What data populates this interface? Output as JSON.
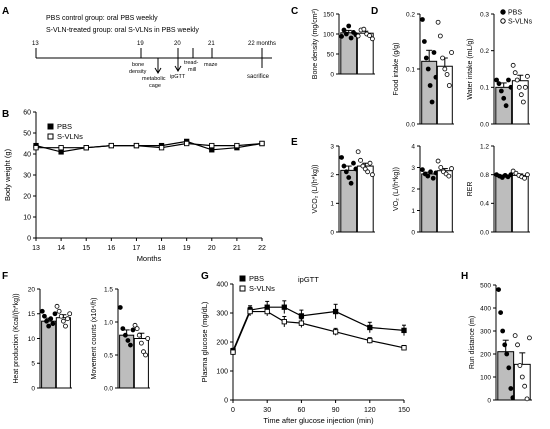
{
  "panel_letters": {
    "a": "A",
    "b": "B",
    "c": "C",
    "d": "D",
    "e": "E",
    "f": "F",
    "g": "G",
    "h": "H"
  },
  "timeline": {
    "line1": "PBS control group: oral PBS weekly",
    "line2": "S-VLN-treated group: oral S-VLNs in PBS weekly",
    "start_month": "13",
    "end_month": "22 months",
    "sacrifice": "sacrifice",
    "events": [
      {
        "month": "19",
        "label1": "bone",
        "label2": "density",
        "label3": "",
        "side": "up"
      },
      {
        "month": "",
        "label1": "metabolic",
        "label2": "cage",
        "label3": "",
        "side": "down"
      },
      {
        "month": "20",
        "label1": "ipGTT",
        "label2": "",
        "label3": "",
        "side": "down"
      },
      {
        "month": "",
        "label1": "tread-",
        "label2": "mill",
        "label3": "",
        "side": "up"
      },
      {
        "month": "21",
        "label1": "maze",
        "label2": "",
        "label3": "",
        "side": "up"
      }
    ]
  },
  "chart_data": [
    {
      "id": "B",
      "type": "line",
      "xlabel": "Months",
      "ylabel": "Body weight (g)",
      "x": [
        13,
        14,
        15,
        16,
        17,
        18,
        19,
        20,
        21,
        22
      ],
      "xlim": [
        13,
        22
      ],
      "ylim": [
        0,
        60
      ],
      "yticks": [
        0,
        10,
        20,
        30,
        40,
        50,
        60
      ],
      "series": [
        {
          "name": "PBS",
          "marker": "square-filled",
          "values": [
            44,
            41,
            43,
            44,
            44,
            44,
            46,
            42,
            43,
            45
          ]
        },
        {
          "name": "S-VLNs",
          "marker": "square-open",
          "values": [
            43,
            43,
            43,
            44,
            44,
            43,
            45,
            44,
            44,
            45
          ]
        }
      ],
      "legend_position": "top-left"
    },
    {
      "id": "C",
      "type": "bar",
      "ylabel": "Bone density (mg/cm²)",
      "ylim": [
        0,
        150
      ],
      "yticks": [
        0,
        50,
        100,
        150
      ],
      "series": [
        {
          "name": "PBS",
          "mean": 103,
          "sem": 6,
          "points": [
            94,
            110,
            100,
            120,
            90,
            104,
            98
          ]
        },
        {
          "name": "S-VLNs",
          "mean": 102,
          "sem": 5,
          "points": [
            95,
            110,
            112,
            100,
            96,
            88
          ]
        }
      ]
    },
    {
      "id": "D-food",
      "type": "bar",
      "ylabel": "Food intake (g/g)",
      "ylim": [
        0,
        0.2
      ],
      "yticks": [
        0.0,
        0.1,
        0.2
      ],
      "series": [
        {
          "name": "PBS",
          "mean": 0.114,
          "sem": 0.02,
          "points": [
            0.19,
            0.15,
            0.12,
            0.1,
            0.07,
            0.04,
            0.13,
            0.085
          ]
        },
        {
          "name": "S-VLNs",
          "mean": 0.105,
          "sem": 0.015,
          "points": [
            0.185,
            0.16,
            0.12,
            0.1,
            0.09,
            0.07,
            0.13
          ]
        }
      ]
    },
    {
      "id": "D-water",
      "type": "bar",
      "ylabel": "Water intake (mL/g)",
      "ylim": [
        0,
        0.3
      ],
      "yticks": [
        0.0,
        0.1,
        0.2,
        0.3
      ],
      "series": [
        {
          "name": "PBS",
          "mean": 0.1,
          "sem": 0.012,
          "points": [
            0.12,
            0.11,
            0.09,
            0.07,
            0.05,
            0.12,
            0.1
          ]
        },
        {
          "name": "S-VLNs",
          "mean": 0.118,
          "sem": 0.015,
          "points": [
            0.16,
            0.14,
            0.12,
            0.1,
            0.08,
            0.06,
            0.1,
            0.13
          ]
        }
      ],
      "legend_position": "top-right"
    },
    {
      "id": "E-vco2",
      "type": "bar",
      "ylabel": "VCO₂ (L/(h*kg))",
      "ylim": [
        0,
        3
      ],
      "yticks": [
        0,
        1,
        2,
        3
      ],
      "series": [
        {
          "name": "PBS",
          "mean": 2.15,
          "sem": 0.15,
          "points": [
            2.6,
            2.3,
            2.1,
            1.9,
            1.7,
            2.4,
            2.2
          ]
        },
        {
          "name": "S-VLNs",
          "mean": 2.3,
          "sem": 0.1,
          "points": [
            2.8,
            2.5,
            2.3,
            2.2,
            2.1,
            2.4,
            2.0
          ]
        }
      ]
    },
    {
      "id": "E-vo2",
      "type": "bar",
      "ylabel": "VO₂ (L/(h*kg))",
      "ylim": [
        0,
        4
      ],
      "yticks": [
        0,
        1,
        2,
        3,
        4
      ],
      "series": [
        {
          "name": "PBS",
          "mean": 2.7,
          "sem": 0.08,
          "points": [
            2.9,
            2.7,
            2.6,
            2.8,
            2.5,
            2.75
          ]
        },
        {
          "name": "S-VLNs",
          "mean": 2.85,
          "sem": 0.1,
          "points": [
            3.3,
            3.0,
            2.8,
            2.7,
            2.6,
            2.95
          ]
        }
      ]
    },
    {
      "id": "E-rer",
      "type": "bar",
      "ylabel": "RER",
      "ylim": [
        0,
        1.2
      ],
      "yticks": [
        0.0,
        0.4,
        0.8,
        1.2
      ],
      "series": [
        {
          "name": "PBS",
          "mean": 0.78,
          "sem": 0.015,
          "points": [
            0.8,
            0.78,
            0.76,
            0.79,
            0.77,
            0.8
          ]
        },
        {
          "name": "S-VLNs",
          "mean": 0.79,
          "sem": 0.02,
          "points": [
            0.85,
            0.82,
            0.79,
            0.77,
            0.75,
            0.8
          ]
        }
      ]
    },
    {
      "id": "F-heat",
      "type": "bar",
      "ylabel": "Heat production (Kcal/(h*kg))",
      "ylim": [
        0,
        20
      ],
      "yticks": [
        0,
        5,
        10,
        15,
        20
      ],
      "series": [
        {
          "name": "PBS",
          "mean": 13.5,
          "sem": 0.6,
          "points": [
            15.5,
            14.5,
            13.5,
            12.5,
            14,
            13,
            15
          ]
        },
        {
          "name": "S-VLNs",
          "mean": 14.2,
          "sem": 0.6,
          "points": [
            16.5,
            15.5,
            14.5,
            13.5,
            12.5,
            14,
            15
          ]
        }
      ]
    },
    {
      "id": "F-move",
      "type": "bar",
      "ylabel": "Movement counts (x10⁴/h)",
      "ylim": [
        0,
        1.5
      ],
      "yticks": [
        0.0,
        0.5,
        1.0,
        1.5
      ],
      "series": [
        {
          "name": "PBS",
          "mean": 0.8,
          "sem": 0.08,
          "points": [
            1.22,
            0.9,
            0.8,
            0.72,
            0.65,
            0.88
          ]
        },
        {
          "name": "S-VLNs",
          "mean": 0.75,
          "sem": 0.08,
          "points": [
            0.95,
            0.9,
            0.8,
            0.68,
            0.55,
            0.5,
            0.75
          ]
        }
      ]
    },
    {
      "id": "G",
      "type": "line",
      "title": "ipGTT",
      "xlabel": "Time after glucose injection (min)",
      "ylabel": "Plasma glucose (mg/dL)",
      "x": [
        0,
        15,
        30,
        45,
        60,
        90,
        120,
        150
      ],
      "xticks": [
        0,
        30,
        60,
        90,
        120,
        150
      ],
      "ylim": [
        0,
        400
      ],
      "yticks": [
        0,
        100,
        200,
        300,
        400
      ],
      "series": [
        {
          "name": "PBS",
          "marker": "square-filled",
          "values": [
            170,
            310,
            320,
            320,
            290,
            305,
            250,
            240
          ],
          "sem": [
            8,
            15,
            20,
            22,
            20,
            25,
            18,
            18
          ]
        },
        {
          "name": "S-VLNs",
          "marker": "square-open",
          "values": [
            165,
            305,
            305,
            270,
            265,
            235,
            205,
            180
          ],
          "sem": [
            8,
            15,
            15,
            18,
            15,
            12,
            10,
            8
          ]
        }
      ],
      "legend_position": "top-left"
    },
    {
      "id": "H",
      "type": "bar",
      "ylabel": "Run distance (m)",
      "ylim": [
        0,
        500
      ],
      "yticks": [
        0,
        100,
        200,
        300,
        400,
        500
      ],
      "series": [
        {
          "name": "PBS",
          "mean": 210,
          "sem": 50,
          "points": [
            480,
            380,
            300,
            240,
            200,
            140,
            50,
            10
          ]
        },
        {
          "name": "S-VLNs",
          "mean": 155,
          "sem": 50,
          "points": [
            280,
            240,
            150,
            100,
            60,
            5,
            270
          ]
        }
      ]
    }
  ],
  "colors": {
    "pbs_bar": "#bdbdbd",
    "svln_bar": "#ffffff",
    "stroke": "#000000"
  }
}
